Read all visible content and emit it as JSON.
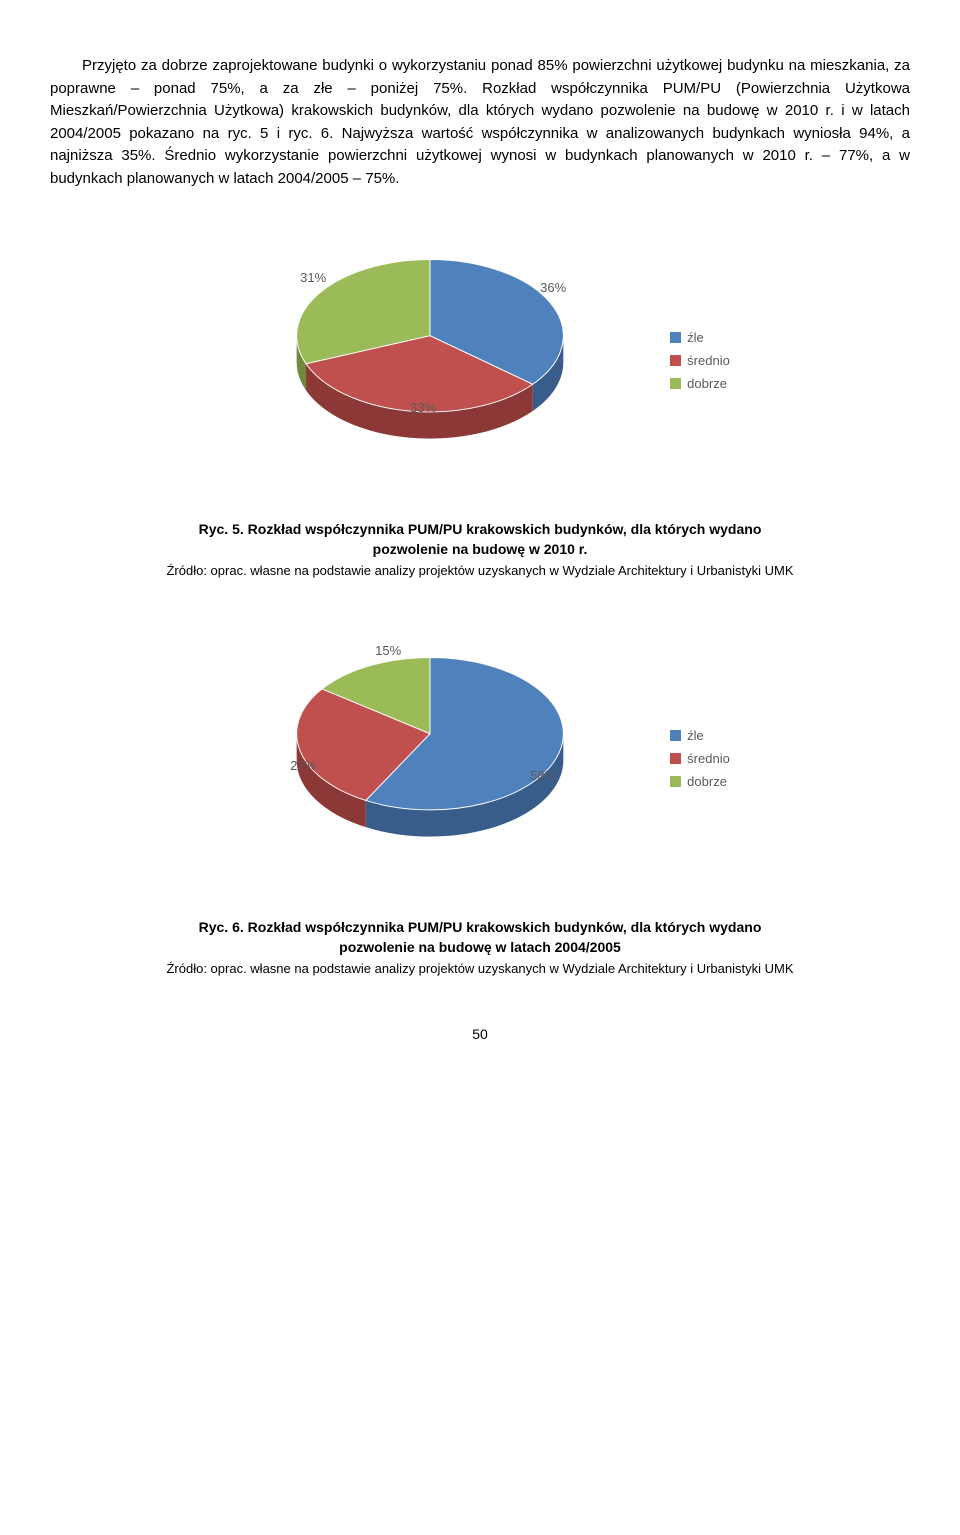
{
  "paragraph": {
    "text": "Przyjęto za dobrze zaprojektowane budynki o wykorzystaniu ponad 85% powierzchni użytkowej budynku na mieszkania, za poprawne – ponad 75%, a za złe – poniżej 75%. Rozkład współczynnika PUM/PU (Powierzchnia Użytkowa Mieszkań/Powierzchnia Użytkowa) krakowskich budynków, dla których wydano pozwolenie na budowę w 2010 r. i w latach 2004/2005 pokazano na ryc. 5 i ryc. 6. Najwyższa wartość współczynnika w analizowanych budynkach wyniosła 94%, a najniższa 35%. Średnio wykorzystanie powierzchni użytkowej wynosi w budynkach planowanych w 2010 r. – 77%, a w budynkach planowanych w latach 2004/2005 – 75%."
  },
  "chart1": {
    "type": "pie",
    "slices": [
      {
        "label": "źle",
        "value": 36,
        "display": "36%",
        "color": "#4f81bd",
        "side_color": "#385d8a"
      },
      {
        "label": "średnio",
        "value": 33,
        "display": "33%",
        "color": "#c0504d",
        "side_color": "#8c3836"
      },
      {
        "label": "dobrze",
        "value": 31,
        "display": "31%",
        "color": "#9bbb59",
        "side_color": "#71893f"
      }
    ],
    "label_color": "#595959",
    "label_fontsize": 13,
    "background_color": "#ffffff"
  },
  "chart2": {
    "type": "pie",
    "slices": [
      {
        "label": "źle",
        "value": 58,
        "display": "58%",
        "color": "#4f81bd",
        "side_color": "#385d8a"
      },
      {
        "label": "średnio",
        "value": 27,
        "display": "27%",
        "color": "#c0504d",
        "side_color": "#8c3836"
      },
      {
        "label": "dobrze",
        "value": 15,
        "display": "15%",
        "color": "#9bbb59",
        "side_color": "#71893f"
      }
    ],
    "label_color": "#595959",
    "label_fontsize": 13,
    "background_color": "#ffffff"
  },
  "legend": {
    "items": [
      {
        "label": "źle",
        "color": "#4f81bd"
      },
      {
        "label": "średnio",
        "color": "#c0504d"
      },
      {
        "label": "dobrze",
        "color": "#9bbb59"
      }
    ]
  },
  "caption1": {
    "title_line1": "Ryc. 5. Rozkład współczynnika PUM/PU krakowskich budynków, dla których wydano",
    "title_line2": "pozwolenie na budowę w 2010 r.",
    "source": "Źródło: oprac. własne na podstawie analizy projektów uzyskanych w Wydziale Architektury i Urbanistyki UMK"
  },
  "caption2": {
    "title_line1": "Ryc. 6. Rozkład współczynnika PUM/PU krakowskich budynków, dla których wydano",
    "title_line2": "pozwolenie na budowę w latach 2004/2005",
    "source": "Źródło: oprac. własne na podstawie analizy projektów uzyskanych w Wydziale Architektury i Urbanistyki UMK"
  },
  "page_number": "50"
}
